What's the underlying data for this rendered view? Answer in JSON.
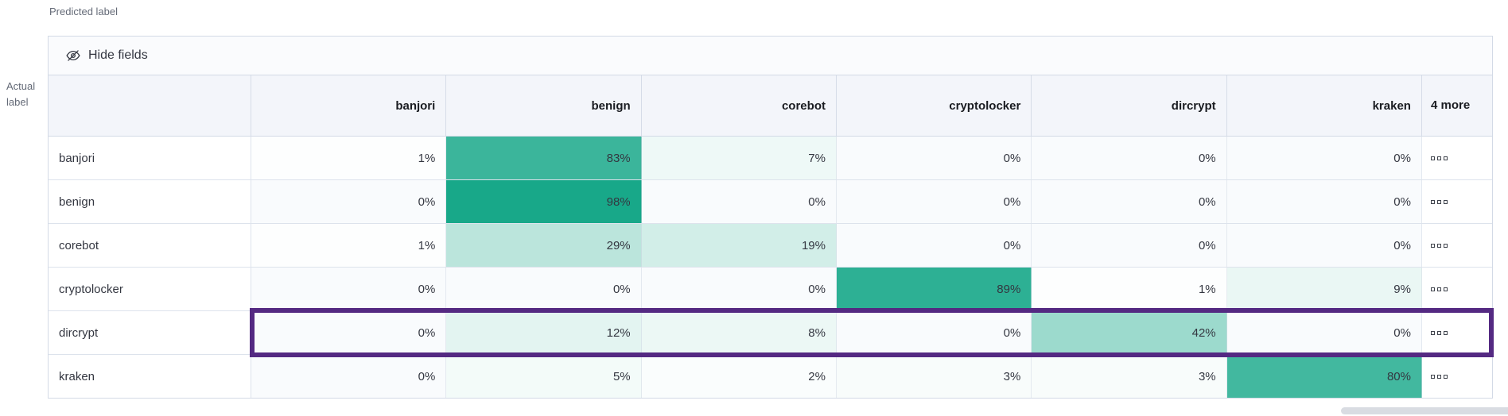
{
  "axis": {
    "predicted": "Predicted label",
    "actual": "Actual label"
  },
  "toolbar": {
    "hide_fields_label": "Hide fields"
  },
  "grid": {
    "columns": [
      "banjori",
      "benign",
      "corebot",
      "cryptolocker",
      "dircrypt",
      "kraken"
    ],
    "more_header": "4 more",
    "rows": [
      {
        "label": "banjori",
        "cells": [
          "1%",
          "83%",
          "7%",
          "0%",
          "0%",
          "0%"
        ],
        "highlighted": false
      },
      {
        "label": "benign",
        "cells": [
          "0%",
          "98%",
          "0%",
          "0%",
          "0%",
          "0%"
        ],
        "highlighted": false
      },
      {
        "label": "corebot",
        "cells": [
          "1%",
          "29%",
          "19%",
          "0%",
          "0%",
          "0%"
        ],
        "highlighted": false
      },
      {
        "label": "cryptolocker",
        "cells": [
          "0%",
          "0%",
          "0%",
          "89%",
          "1%",
          "9%"
        ],
        "highlighted": false
      },
      {
        "label": "dircrypt",
        "cells": [
          "0%",
          "12%",
          "8%",
          "0%",
          "42%",
          "0%"
        ],
        "highlighted": true
      },
      {
        "label": "kraken",
        "cells": [
          "0%",
          "5%",
          "2%",
          "3%",
          "3%",
          "80%"
        ],
        "highlighted": false
      }
    ]
  },
  "icons": {
    "hide_fields": "eye-closed-icon",
    "row_actions": "boxes-horizontal-icon"
  },
  "colors": {
    "heat_base": "#13a687",
    "zero_cell": "#f9fbfd",
    "highlight": "#542982",
    "header_bg": "#f3f5fa",
    "toolbar_bg": "#fafbfd",
    "outer_border": "#d3dae6",
    "row_border": "#dde3ec",
    "text": "#343741",
    "muted_text": "#646a77",
    "scrollbar": "#d9dce2"
  },
  "chart_data": {
    "type": "heatmap",
    "xlabel": "Predicted label",
    "ylabel": "Actual label",
    "x_categories": [
      "banjori",
      "benign",
      "corebot",
      "cryptolocker",
      "dircrypt",
      "kraken"
    ],
    "y_categories": [
      "banjori",
      "benign",
      "corebot",
      "cryptolocker",
      "dircrypt",
      "kraken"
    ],
    "values": [
      [
        1,
        83,
        7,
        0,
        0,
        0
      ],
      [
        0,
        98,
        0,
        0,
        0,
        0
      ],
      [
        1,
        29,
        19,
        0,
        0,
        0
      ],
      [
        0,
        0,
        0,
        89,
        1,
        9
      ],
      [
        0,
        12,
        8,
        0,
        42,
        0
      ],
      [
        0,
        5,
        2,
        3,
        3,
        80
      ]
    ],
    "unit": "%",
    "hidden_columns_indicator": "4 more",
    "highlighted_row": "dircrypt",
    "color_scale": [
      "#ffffff",
      "#13a687"
    ]
  }
}
